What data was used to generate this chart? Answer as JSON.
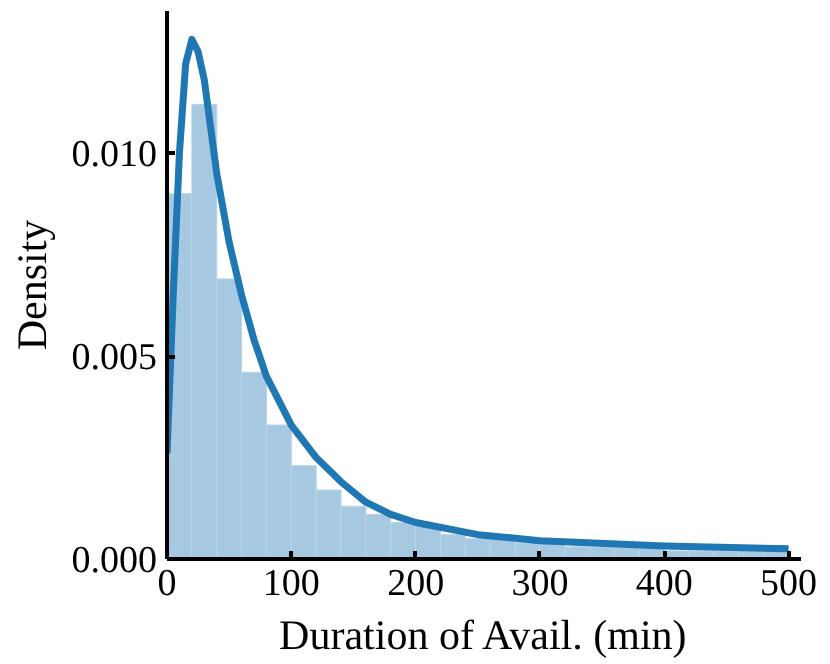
{
  "chart_data": {
    "type": "histogram",
    "xlabel": "Duration of Avail. (min)",
    "ylabel": "Density",
    "bins": [
      0,
      20,
      40,
      60,
      80,
      100,
      120,
      140,
      160,
      180,
      200,
      220,
      240,
      260,
      280,
      300,
      320,
      340,
      360,
      380,
      400,
      420,
      440,
      460,
      480,
      500
    ],
    "values": [
      0.009,
      0.0112,
      0.0069,
      0.0046,
      0.0033,
      0.0023,
      0.0017,
      0.0013,
      0.0011,
      0.0009,
      0.0008,
      0.0006,
      0.0005,
      0.0005,
      0.0004,
      0.0004,
      0.0003,
      0.0003,
      0.0003,
      0.0003,
      0.0002,
      0.0002,
      0.0002,
      0.0002,
      0.0002
    ],
    "color": "#a6c8e1",
    "series": [
      {
        "type": "line",
        "color": "#1f77b4",
        "x": [
          0,
          5,
          10,
          15,
          20,
          25,
          30,
          40,
          50,
          60,
          70,
          80,
          90,
          100,
          120,
          140,
          160,
          180,
          200,
          250,
          300,
          400,
          500
        ],
        "values": [
          0.0026,
          0.0065,
          0.01,
          0.0122,
          0.0128,
          0.0125,
          0.0118,
          0.0095,
          0.0078,
          0.0065,
          0.0054,
          0.0045,
          0.0039,
          0.0033,
          0.0025,
          0.0019,
          0.0014,
          0.0011,
          0.0009,
          0.0006,
          0.00045,
          0.00032,
          0.00025
        ]
      }
    ],
    "xlim": [
      0,
      510
    ],
    "ylim": [
      0,
      0.0135
    ],
    "xticks": [
      0,
      100,
      200,
      300,
      400,
      500
    ],
    "yticks": [
      {
        "value": 0,
        "label": "0.000"
      },
      {
        "value": 0.005,
        "label": "0.005"
      },
      {
        "value": 0.01,
        "label": "0.010"
      }
    ],
    "grid": false
  }
}
